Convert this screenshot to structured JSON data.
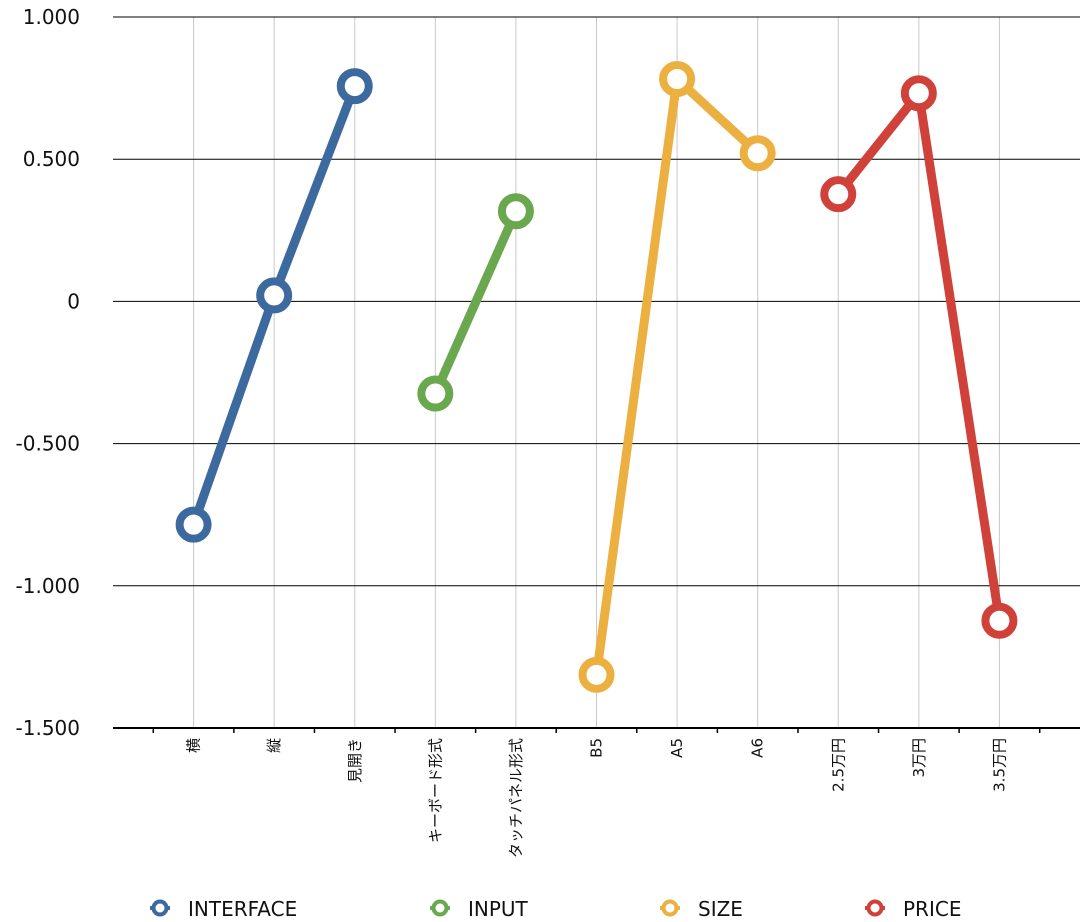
{
  "chart_data": {
    "type": "line",
    "categories": [
      "横",
      "縦",
      "見開き",
      "キーボード形式",
      "タッチパネル形式",
      "B5",
      "A5",
      "A6",
      "2.5万円",
      "3万円",
      "3.5万円"
    ],
    "series": [
      {
        "name": "INTERFACE",
        "color": "#3d6a9e",
        "values": [
          -0.785,
          0.021,
          0.757,
          null,
          null,
          null,
          null,
          null,
          null,
          null,
          null
        ]
      },
      {
        "name": "INPUT",
        "color": "#6aa84f",
        "values": [
          null,
          null,
          null,
          -0.324,
          0.317,
          null,
          null,
          null,
          null,
          null,
          null
        ]
      },
      {
        "name": "SIZE",
        "color": "#ecb040",
        "values": [
          null,
          null,
          null,
          null,
          null,
          -1.313,
          0.782,
          0.521,
          null,
          null,
          null
        ]
      },
      {
        "name": "PRICE",
        "color": "#d0413a",
        "values": [
          null,
          null,
          null,
          null,
          null,
          null,
          null,
          null,
          0.377,
          0.732,
          -1.123
        ]
      }
    ],
    "ylim": [
      -1.5,
      1.0
    ],
    "yticks": [
      {
        "value": 1.0,
        "label": "1.000"
      },
      {
        "value": 0.5,
        "label": "0.500"
      },
      0,
      {
        "value": -0.5,
        "label": "-0.500"
      },
      {
        "value": -1.0,
        "label": "-1.000"
      },
      {
        "value": -1.5,
        "label": "-1.500"
      }
    ],
    "grid": true,
    "legend": "bottom"
  }
}
